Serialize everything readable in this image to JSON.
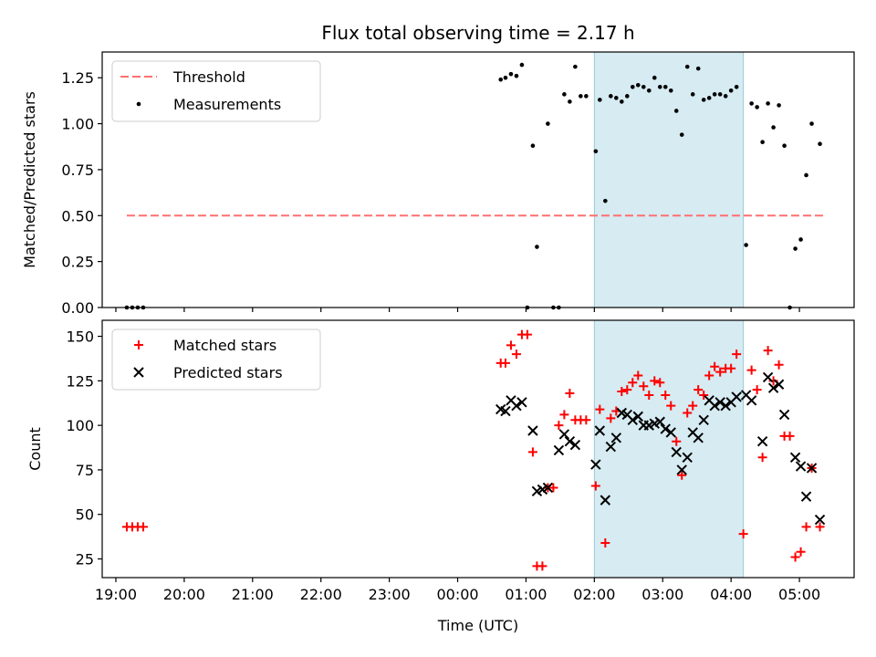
{
  "chart_data": [
    {
      "type": "scatter",
      "title": "Flux total observing time = 2.17 h",
      "xlabel": "",
      "ylabel": "Matched/Predicted stars",
      "xlim": [
        18.8,
        29.8
      ],
      "ylim": [
        0.0,
        1.39
      ],
      "xticks": [
        19,
        20,
        21,
        22,
        23,
        24,
        25,
        26,
        27,
        28,
        29
      ],
      "yticks": [
        0.0,
        0.25,
        0.5,
        0.75,
        1.0,
        1.25
      ],
      "ytick_labels": [
        "0.00",
        "0.25",
        "0.50",
        "0.75",
        "1.00",
        "1.25"
      ],
      "shaded_span": [
        26.0,
        28.18
      ],
      "threshold": {
        "name": "Threshold",
        "y": 0.5,
        "x": [
          19.16,
          29.36
        ],
        "color": "#ff7070"
      },
      "series": [
        {
          "name": "Measurements",
          "color": "#000000",
          "points": [
            [
              19.16,
              0.0
            ],
            [
              19.24,
              0.0
            ],
            [
              19.32,
              0.0
            ],
            [
              19.4,
              0.0
            ],
            [
              24.63,
              1.24
            ],
            [
              24.7,
              1.25
            ],
            [
              24.78,
              1.27
            ],
            [
              24.86,
              1.26
            ],
            [
              24.94,
              1.32
            ],
            [
              25.02,
              0.0
            ],
            [
              25.1,
              0.88
            ],
            [
              25.16,
              0.33
            ],
            [
              25.32,
              1.0
            ],
            [
              25.4,
              0.0
            ],
            [
              25.48,
              0.0
            ],
            [
              25.56,
              1.16
            ],
            [
              25.64,
              1.12
            ],
            [
              25.72,
              1.31
            ],
            [
              25.8,
              1.15
            ],
            [
              25.88,
              1.15
            ],
            [
              26.02,
              0.85
            ],
            [
              26.08,
              1.13
            ],
            [
              26.16,
              0.58
            ],
            [
              26.24,
              1.15
            ],
            [
              26.32,
              1.14
            ],
            [
              26.4,
              1.12
            ],
            [
              26.48,
              1.15
            ],
            [
              26.56,
              1.2
            ],
            [
              26.64,
              1.21
            ],
            [
              26.72,
              1.2
            ],
            [
              26.8,
              1.18
            ],
            [
              26.88,
              1.25
            ],
            [
              26.96,
              1.2
            ],
            [
              27.04,
              1.2
            ],
            [
              27.12,
              1.18
            ],
            [
              27.2,
              1.07
            ],
            [
              27.28,
              0.94
            ],
            [
              27.36,
              1.31
            ],
            [
              27.44,
              1.16
            ],
            [
              27.52,
              1.3
            ],
            [
              27.6,
              1.13
            ],
            [
              27.68,
              1.14
            ],
            [
              27.76,
              1.16
            ],
            [
              27.84,
              1.16
            ],
            [
              27.92,
              1.15
            ],
            [
              28.0,
              1.18
            ],
            [
              28.08,
              1.2
            ],
            [
              28.22,
              0.34
            ],
            [
              28.3,
              1.11
            ],
            [
              28.38,
              1.09
            ],
            [
              28.46,
              0.9
            ],
            [
              28.54,
              1.11
            ],
            [
              28.62,
              0.98
            ],
            [
              28.7,
              1.1
            ],
            [
              28.78,
              0.88
            ],
            [
              28.86,
              0.0
            ],
            [
              28.94,
              0.32
            ],
            [
              29.02,
              0.37
            ],
            [
              29.1,
              0.72
            ],
            [
              29.18,
              1.0
            ],
            [
              29.3,
              0.89
            ]
          ]
        }
      ]
    },
    {
      "type": "scatter",
      "title": "",
      "xlabel": "Time (UTC)",
      "ylabel": "Count",
      "xlim": [
        18.8,
        29.8
      ],
      "ylim": [
        14.5,
        159
      ],
      "xticks": [
        19,
        20,
        21,
        22,
        23,
        24,
        25,
        26,
        27,
        28,
        29
      ],
      "xtick_labels": [
        "19:00",
        "20:00",
        "21:00",
        "22:00",
        "23:00",
        "00:00",
        "01:00",
        "02:00",
        "03:00",
        "04:00",
        "05:00"
      ],
      "yticks": [
        25,
        50,
        75,
        100,
        125,
        150
      ],
      "ytick_labels": [
        "25",
        "50",
        "75",
        "100",
        "125",
        "150"
      ],
      "shaded_span": [
        26.0,
        28.18
      ],
      "series": [
        {
          "name": "Matched stars",
          "marker": "plus",
          "color": "#ff0000",
          "points": [
            [
              19.16,
              43
            ],
            [
              19.24,
              43
            ],
            [
              19.32,
              43
            ],
            [
              19.4,
              43
            ],
            [
              24.63,
              135
            ],
            [
              24.7,
              135
            ],
            [
              24.78,
              145
            ],
            [
              24.86,
              140
            ],
            [
              24.94,
              151
            ],
            [
              25.02,
              151
            ],
            [
              25.1,
              85
            ],
            [
              25.16,
              21
            ],
            [
              25.24,
              21
            ],
            [
              25.32,
              65
            ],
            [
              25.4,
              65
            ],
            [
              25.48,
              100
            ],
            [
              25.56,
              106
            ],
            [
              25.64,
              118
            ],
            [
              25.72,
              103
            ],
            [
              25.8,
              103
            ],
            [
              25.88,
              103
            ],
            [
              26.02,
              66
            ],
            [
              26.08,
              109
            ],
            [
              26.16,
              34
            ],
            [
              26.24,
              104
            ],
            [
              26.32,
              108
            ],
            [
              26.4,
              119
            ],
            [
              26.48,
              120
            ],
            [
              26.56,
              124
            ],
            [
              26.64,
              128
            ],
            [
              26.72,
              122
            ],
            [
              26.8,
              117
            ],
            [
              26.88,
              125
            ],
            [
              26.96,
              124
            ],
            [
              27.04,
              117
            ],
            [
              27.12,
              111
            ],
            [
              27.2,
              91
            ],
            [
              27.28,
              72
            ],
            [
              27.36,
              107
            ],
            [
              27.44,
              111
            ],
            [
              27.52,
              120
            ],
            [
              27.6,
              117
            ],
            [
              27.68,
              128
            ],
            [
              27.76,
              133
            ],
            [
              27.84,
              130
            ],
            [
              27.92,
              132
            ],
            [
              28.0,
              132
            ],
            [
              28.08,
              140
            ],
            [
              28.18,
              39
            ],
            [
              28.3,
              131
            ],
            [
              28.38,
              120
            ],
            [
              28.46,
              82
            ],
            [
              28.54,
              142
            ],
            [
              28.62,
              125
            ],
            [
              28.7,
              134
            ],
            [
              28.78,
              94
            ],
            [
              28.86,
              94
            ],
            [
              28.94,
              26
            ],
            [
              29.02,
              29
            ],
            [
              29.1,
              43
            ],
            [
              29.18,
              76
            ],
            [
              29.3,
              43
            ]
          ]
        },
        {
          "name": "Predicted stars",
          "marker": "x",
          "color": "#000000",
          "points": [
            [
              24.63,
              109
            ],
            [
              24.7,
              108
            ],
            [
              24.78,
              114
            ],
            [
              24.86,
              111
            ],
            [
              24.94,
              113
            ],
            [
              25.1,
              97
            ],
            [
              25.16,
              63
            ],
            [
              25.24,
              64
            ],
            [
              25.32,
              65
            ],
            [
              25.48,
              86
            ],
            [
              25.56,
              95
            ],
            [
              25.64,
              91
            ],
            [
              25.72,
              89
            ],
            [
              26.02,
              78
            ],
            [
              26.08,
              97
            ],
            [
              26.16,
              58
            ],
            [
              26.24,
              88
            ],
            [
              26.32,
              93
            ],
            [
              26.4,
              107
            ],
            [
              26.48,
              106
            ],
            [
              26.56,
              103
            ],
            [
              26.64,
              105
            ],
            [
              26.72,
              100
            ],
            [
              26.8,
              100
            ],
            [
              26.88,
              101
            ],
            [
              26.96,
              102
            ],
            [
              27.04,
              98
            ],
            [
              27.12,
              96
            ],
            [
              27.2,
              85
            ],
            [
              27.28,
              75
            ],
            [
              27.36,
              82
            ],
            [
              27.44,
              96
            ],
            [
              27.52,
              93
            ],
            [
              27.6,
              103
            ],
            [
              27.68,
              114
            ],
            [
              27.76,
              111
            ],
            [
              27.84,
              113
            ],
            [
              27.92,
              111
            ],
            [
              28.0,
              113
            ],
            [
              28.08,
              116
            ],
            [
              28.22,
              117
            ],
            [
              28.3,
              114
            ],
            [
              28.46,
              91
            ],
            [
              28.54,
              127
            ],
            [
              28.62,
              121
            ],
            [
              28.7,
              123
            ],
            [
              28.78,
              106
            ],
            [
              28.94,
              82
            ],
            [
              29.02,
              77
            ],
            [
              29.1,
              60
            ],
            [
              29.18,
              76
            ],
            [
              29.3,
              47
            ]
          ]
        }
      ]
    }
  ]
}
